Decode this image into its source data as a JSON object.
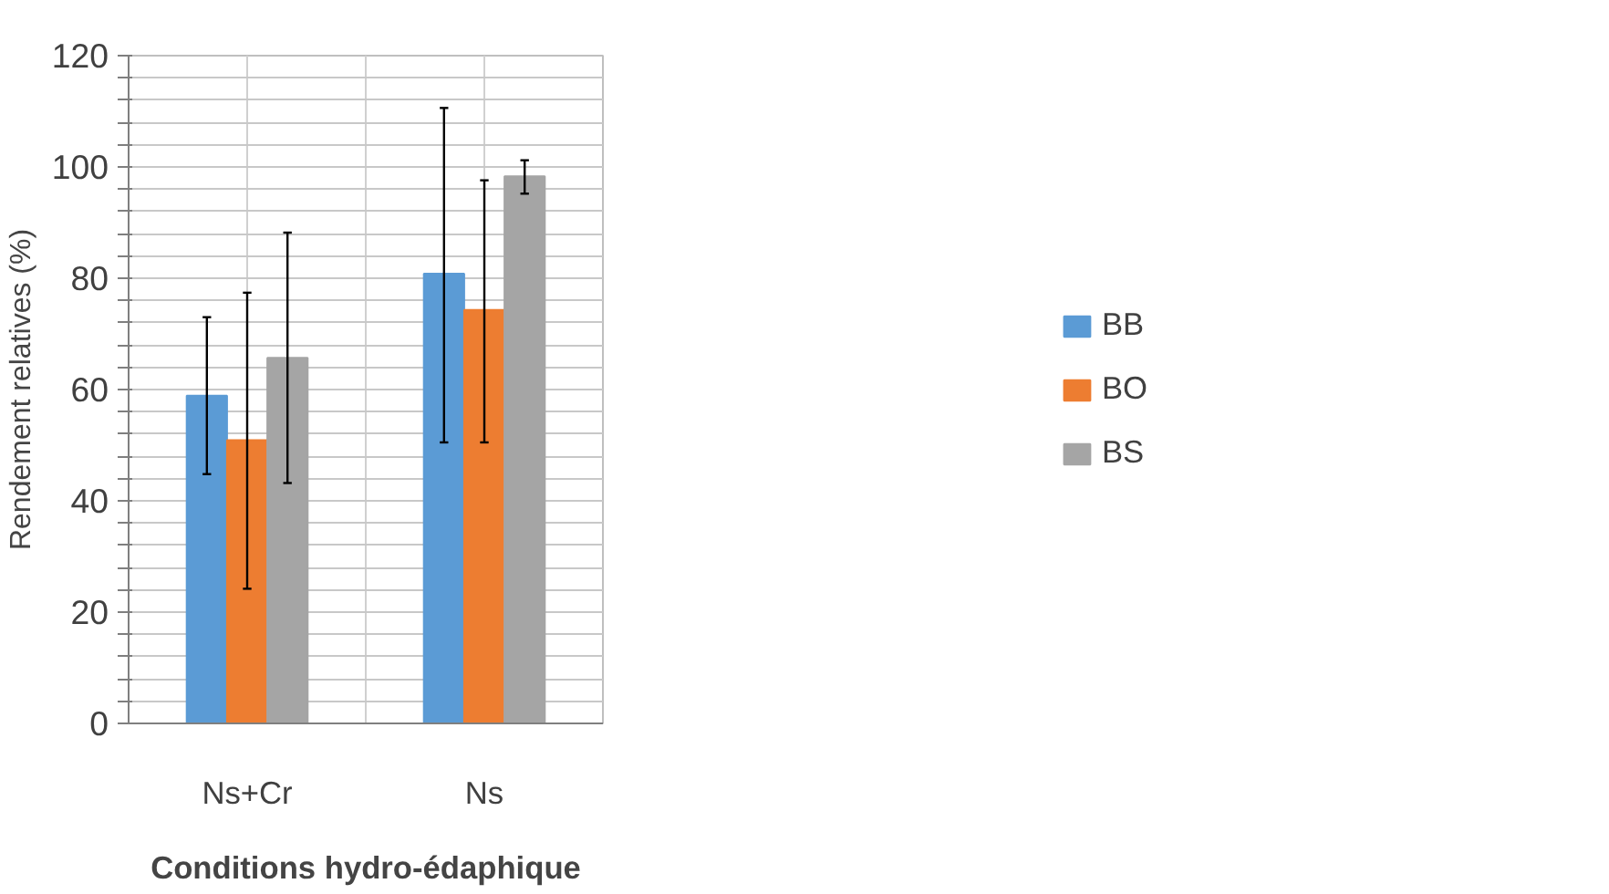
{
  "chart_data": {
    "type": "bar",
    "xlabel": "Conditions hydro-édaphique",
    "ylabel": "Rendement relatives (%)",
    "categories": [
      "Ns+Cr",
      "Ns"
    ],
    "series": [
      {
        "name": "BB",
        "color": "#5b9bd5",
        "values": [
          58.9,
          80.8
        ],
        "errors": [
          [
            44.8,
            73
          ],
          [
            50.5,
            110.6
          ]
        ]
      },
      {
        "name": "BO",
        "color": "#ed7d31",
        "values": [
          50.9,
          74.3
        ],
        "errors": [
          [
            24.2,
            77.4
          ],
          [
            50.5,
            97.6
          ]
        ]
      },
      {
        "name": "BS",
        "color": "#a5a5a5",
        "values": [
          65.7,
          98.3
        ],
        "errors": [
          [
            43.2,
            88.2
          ],
          [
            95.2,
            101.2
          ]
        ]
      }
    ],
    "ylim": [
      0,
      120
    ],
    "yticks": [
      0,
      {
        "value": 4,
        "label": null
      },
      {
        "value": 8,
        "label": null
      },
      {
        "value": 12,
        "label": null
      },
      {
        "value": 16,
        "label": null
      },
      20,
      {
        "value": 24,
        "label": null
      },
      {
        "value": 28,
        "label": null
      },
      {
        "value": 32,
        "label": null
      },
      {
        "value": 36,
        "label": null
      },
      40,
      {
        "value": 44,
        "label": null
      },
      {
        "value": 48,
        "label": null
      },
      {
        "value": 52,
        "label": null
      },
      {
        "value": 56,
        "label": null
      },
      60,
      {
        "value": 64,
        "label": null
      },
      {
        "value": 68,
        "label": null
      },
      {
        "value": 72,
        "label": null
      },
      {
        "value": 76,
        "label": null
      },
      80,
      {
        "value": 84,
        "label": null
      },
      {
        "value": 88,
        "label": null
      },
      {
        "value": 92,
        "label": null
      },
      {
        "value": 96,
        "label": null
      },
      100,
      {
        "value": 104,
        "label": null
      },
      {
        "value": 108,
        "label": null
      },
      {
        "value": 112,
        "label": null
      },
      {
        "value": 116,
        "label": null
      },
      120
    ],
    "grid": true,
    "legend": "right"
  }
}
